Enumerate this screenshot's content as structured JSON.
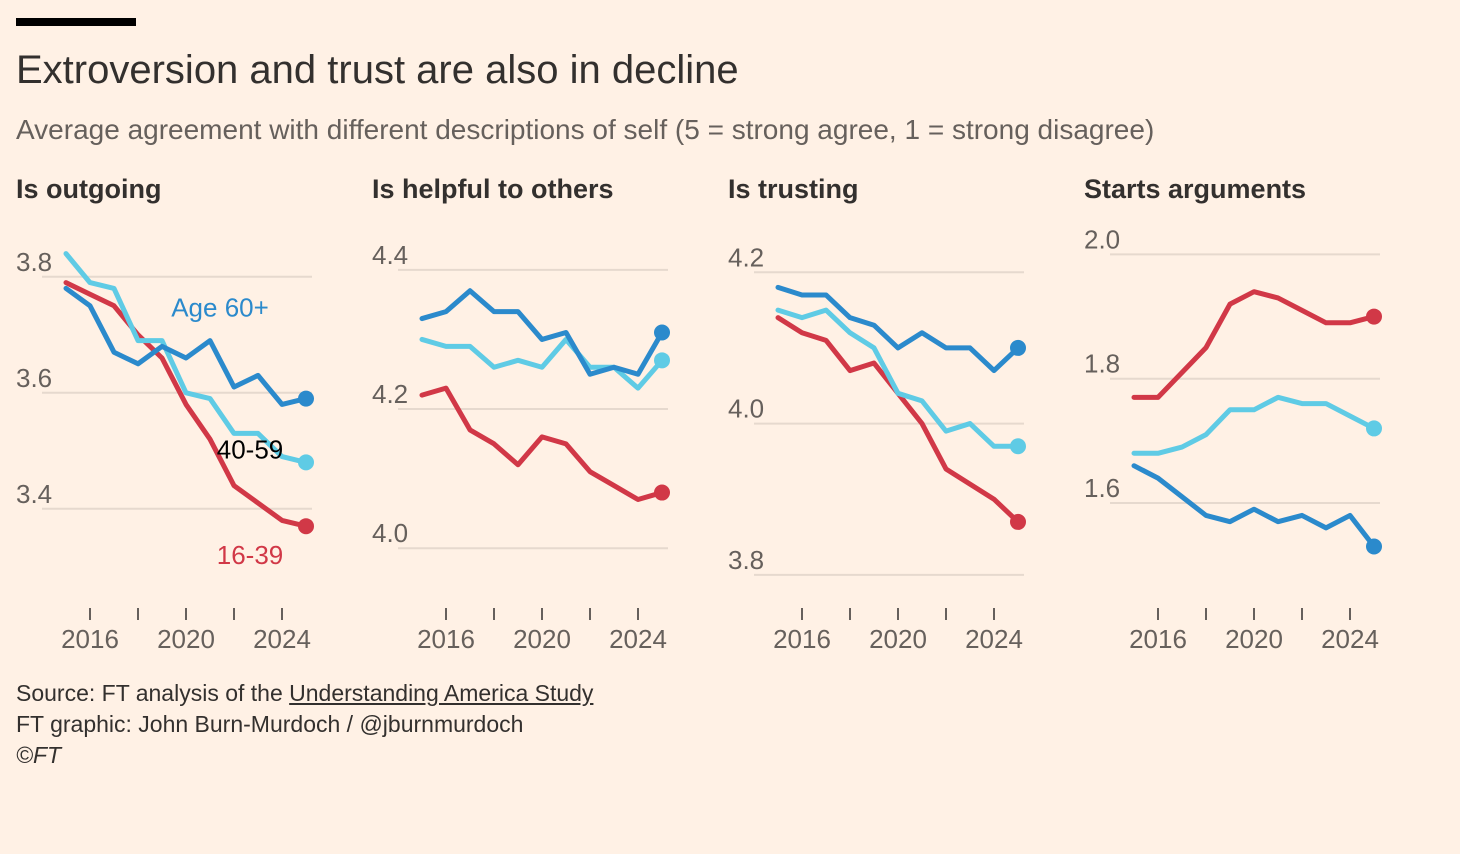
{
  "header": {
    "title": "Extroversion and trust are also in decline",
    "subtitle": "Average agreement with different descriptions of self (5 = strong agree, 1 = strong disagree)"
  },
  "colors": {
    "age_60_plus": "#2b8acc",
    "age_40_59": "#5fcbe5",
    "age_16_39": "#d13847",
    "grid": "#e6d9ce",
    "axis_text": "#66605c",
    "background": "#fff1e5"
  },
  "chart_data": [
    {
      "type": "line",
      "title": "Is outgoing",
      "ylim": [
        3.26,
        3.86
      ],
      "yticks": [
        "3.4",
        "3.6",
        "3.8"
      ],
      "xticks": [
        "2016",
        "2020",
        "2024"
      ],
      "x": [
        2015,
        2016,
        2017,
        2018,
        2019,
        2020,
        2021,
        2022,
        2023,
        2024,
        2025
      ],
      "series": [
        {
          "name": "Age 60+",
          "color_key": "age_60_plus",
          "values": [
            3.78,
            3.75,
            3.67,
            3.65,
            3.68,
            3.66,
            3.69,
            3.61,
            3.63,
            3.58,
            3.59
          ]
        },
        {
          "name": "40-59",
          "color_key": "age_40_59",
          "values": [
            3.84,
            3.79,
            3.78,
            3.69,
            3.69,
            3.6,
            3.59,
            3.53,
            3.53,
            3.49,
            3.48
          ]
        },
        {
          "name": "16-39",
          "color_key": "age_16_39",
          "values": [
            3.79,
            3.77,
            3.75,
            3.7,
            3.66,
            3.58,
            3.52,
            3.44,
            3.41,
            3.38,
            3.37
          ]
        }
      ],
      "labels": [
        {
          "text": "Age 60+",
          "series": 0
        },
        {
          "text": "40-59",
          "series": 1
        },
        {
          "text": "16-39",
          "series": 2
        }
      ]
    },
    {
      "type": "line",
      "title": "Is helpful to others",
      "ylim": [
        3.94,
        4.44
      ],
      "yticks": [
        "4.0",
        "4.2",
        "4.4"
      ],
      "xticks": [
        "2016",
        "2020",
        "2024"
      ],
      "x": [
        2015,
        2016,
        2017,
        2018,
        2019,
        2020,
        2021,
        2022,
        2023,
        2024,
        2025
      ],
      "series": [
        {
          "color_key": "age_60_plus",
          "values": [
            4.33,
            4.34,
            4.37,
            4.34,
            4.34,
            4.3,
            4.31,
            4.25,
            4.26,
            4.25,
            4.31
          ]
        },
        {
          "color_key": "age_40_59",
          "values": [
            4.3,
            4.29,
            4.29,
            4.26,
            4.27,
            4.26,
            4.3,
            4.26,
            4.26,
            4.23,
            4.27
          ]
        },
        {
          "color_key": "age_16_39",
          "values": [
            4.22,
            4.23,
            4.17,
            4.15,
            4.12,
            4.16,
            4.15,
            4.11,
            4.09,
            4.07,
            4.08
          ]
        }
      ]
    },
    {
      "type": "line",
      "title": "Is trusting",
      "ylim": [
        3.78,
        4.24
      ],
      "yticks": [
        "3.8",
        "4.0",
        "4.2"
      ],
      "xticks": [
        "2016",
        "2020",
        "2024"
      ],
      "x": [
        2015,
        2016,
        2017,
        2018,
        2019,
        2020,
        2021,
        2022,
        2023,
        2024,
        2025
      ],
      "series": [
        {
          "color_key": "age_60_plus",
          "values": [
            4.18,
            4.17,
            4.17,
            4.14,
            4.13,
            4.1,
            4.12,
            4.1,
            4.1,
            4.07,
            4.1
          ]
        },
        {
          "color_key": "age_40_59",
          "values": [
            4.15,
            4.14,
            4.15,
            4.12,
            4.1,
            4.04,
            4.03,
            3.99,
            4.0,
            3.97,
            3.97
          ]
        },
        {
          "color_key": "age_16_39",
          "values": [
            4.14,
            4.12,
            4.11,
            4.07,
            4.08,
            4.04,
            4.0,
            3.94,
            3.92,
            3.9,
            3.87
          ]
        }
      ]
    },
    {
      "type": "line",
      "title": "Starts arguments",
      "ylim": [
        1.46,
        2.02
      ],
      "yticks": [
        "1.6",
        "1.8",
        "2.0"
      ],
      "xticks": [
        "2016",
        "2020",
        "2024"
      ],
      "x": [
        2015,
        2016,
        2017,
        2018,
        2019,
        2020,
        2021,
        2022,
        2023,
        2024,
        2025
      ],
      "series": [
        {
          "color_key": "age_60_plus",
          "values": [
            1.66,
            1.64,
            1.61,
            1.58,
            1.57,
            1.59,
            1.57,
            1.58,
            1.56,
            1.58,
            1.53
          ]
        },
        {
          "color_key": "age_40_59",
          "values": [
            1.68,
            1.68,
            1.69,
            1.71,
            1.75,
            1.75,
            1.77,
            1.76,
            1.76,
            1.74,
            1.72
          ]
        },
        {
          "color_key": "age_16_39",
          "values": [
            1.77,
            1.77,
            1.81,
            1.85,
            1.92,
            1.94,
            1.93,
            1.91,
            1.89,
            1.89,
            1.9
          ]
        }
      ]
    }
  ],
  "footer": {
    "source_prefix": "Source: FT analysis of the ",
    "source_link": "Understanding America Study",
    "graphic": "FT graphic: John Burn-Murdoch / @jburnmurdoch",
    "copyright": "©FT"
  }
}
